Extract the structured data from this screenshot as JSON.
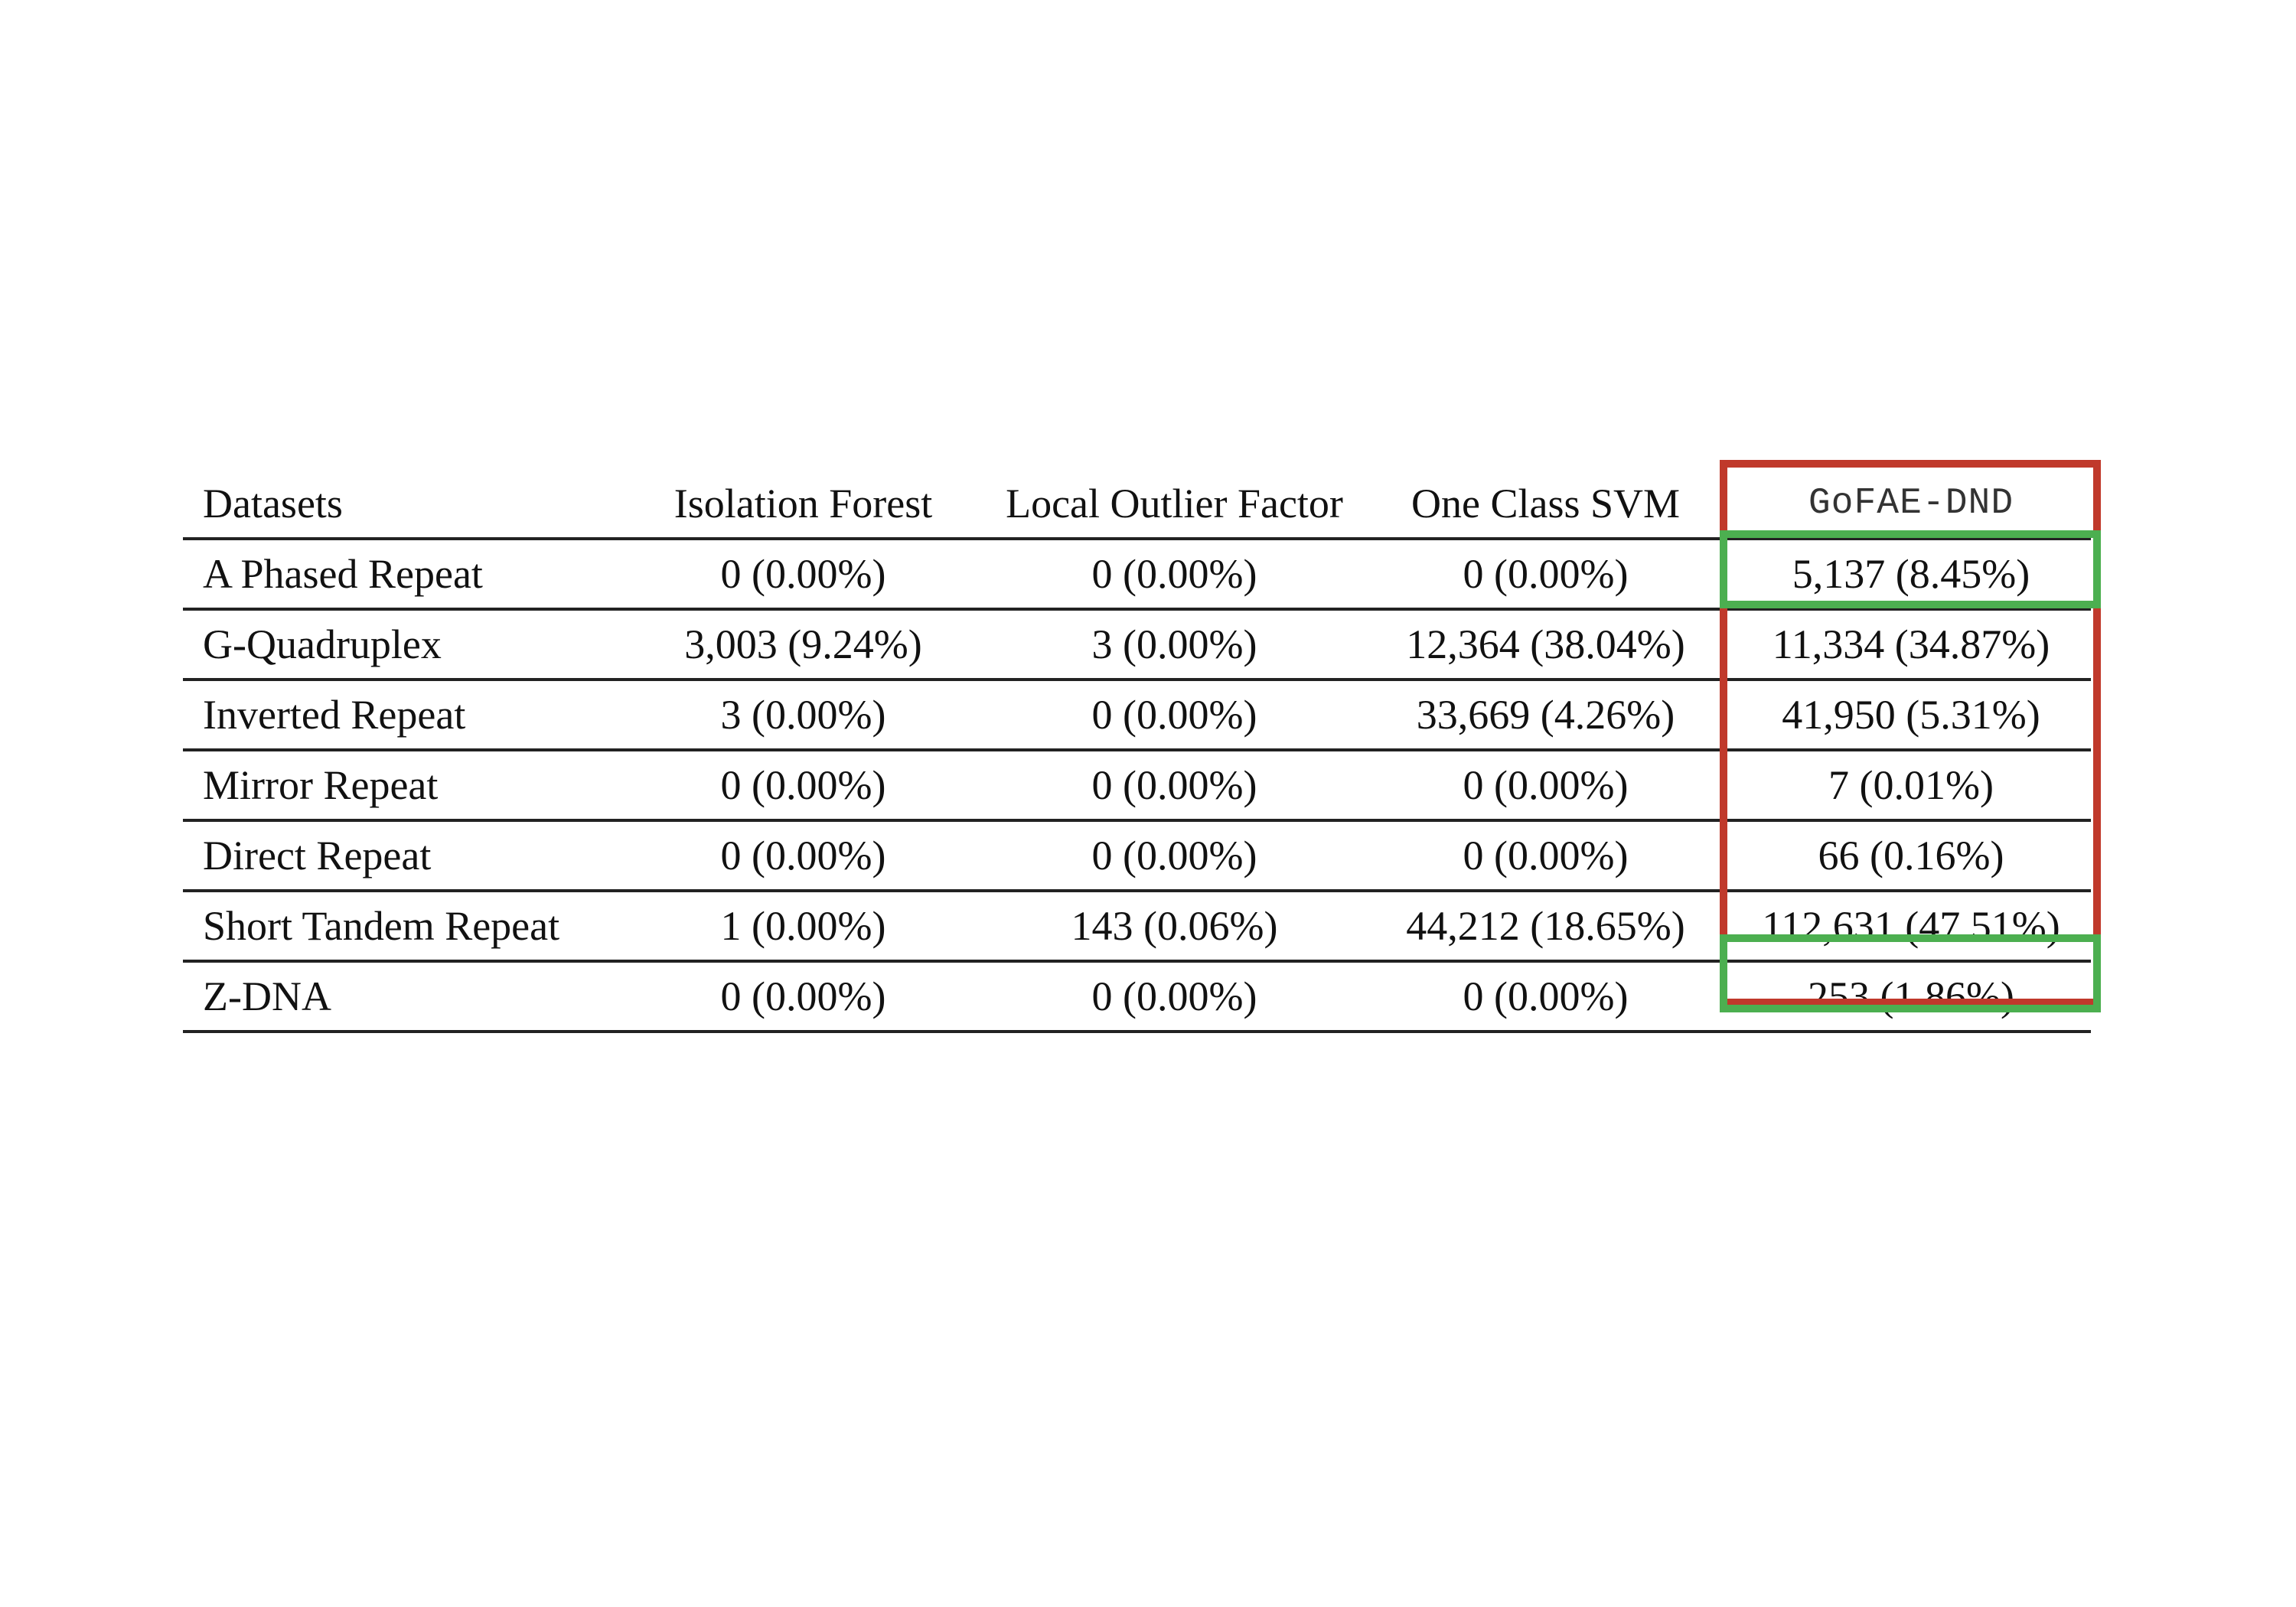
{
  "table": {
    "headers": [
      "Datasets",
      "Isolation Forest",
      "Local Outlier Factor",
      "One Class SVM",
      "GoFAE-DND"
    ],
    "rows": [
      [
        "A Phased Repeat",
        "0 (0.00%)",
        "0 (0.00%)",
        "0 (0.00%)",
        "5,137 (8.45%)"
      ],
      [
        "G-Quadruplex",
        "3,003 (9.24%)",
        "3 (0.00%)",
        "12,364 (38.04%)",
        "11,334 (34.87%)"
      ],
      [
        "Inverted Repeat",
        "3 (0.00%)",
        "0 (0.00%)",
        "33,669 (4.26%)",
        "41,950 (5.31%)"
      ],
      [
        "Mirror Repeat",
        "0 (0.00%)",
        "0 (0.00%)",
        "0 (0.00%)",
        "7 (0.01%)"
      ],
      [
        "Direct Repeat",
        "0 (0.00%)",
        "0 (0.00%)",
        "0 (0.00%)",
        "66 (0.16%)"
      ],
      [
        "Short Tandem Repeat",
        "1 (0.00%)",
        "143 (0.06%)",
        "44,212 (18.65%)",
        "112,631 (47.51%)"
      ],
      [
        "Z-DNA",
        "0 (0.00%)",
        "0 (0.00%)",
        "0 (0.00%)",
        "253 (1.86%)"
      ]
    ]
  },
  "highlights": {
    "column_box_color": "#c0392b",
    "cell_box_color": "#4caf50"
  }
}
